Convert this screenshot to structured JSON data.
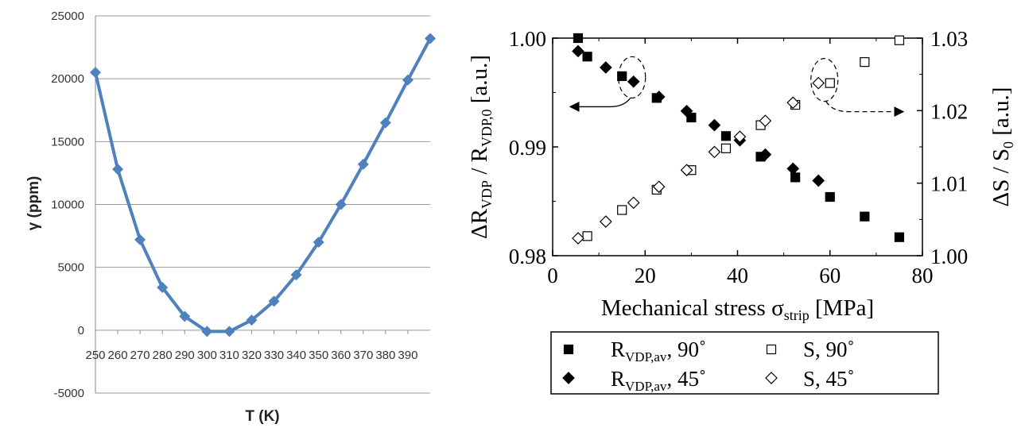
{
  "chart_data": [
    {
      "type": "line",
      "xlabel": "T (K)",
      "ylabel": "γ (ppm)",
      "xlim": [
        250,
        400
      ],
      "ylim": [
        -5000,
        25000
      ],
      "x_ticks": [
        "250",
        "260",
        "270",
        "280",
        "290",
        "300",
        "310",
        "320",
        "330",
        "340",
        "350",
        "360",
        "370",
        "380",
        "390"
      ],
      "y_ticks": [
        "-5000",
        "0",
        "5000",
        "10000",
        "15000",
        "20000",
        "25000"
      ],
      "grid": "horizontal",
      "color": "#4F81BD",
      "series": [
        {
          "x": [
            250,
            260,
            270,
            280,
            290,
            300,
            310,
            320,
            330,
            340,
            350,
            360,
            370,
            380,
            390,
            400
          ],
          "values": [
            20500,
            12800,
            7200,
            3400,
            1100,
            -100,
            -100,
            800,
            2300,
            4400,
            7000,
            10000,
            13200,
            16500,
            19900,
            23200
          ]
        }
      ]
    },
    {
      "type": "scatter",
      "xlabel": "Mechanical stress σ",
      "xlabel_sub": "strip",
      "xlabel_unit": "[MPa]",
      "ylabel": "ΔR",
      "ylabel_sub1": "VDP",
      "ylabel_mid": " / R",
      "ylabel_sub2": "VDP,0",
      "ylabel_unit": "[a.u.]",
      "y2label": "ΔS / S",
      "y2label_sub": "0",
      "y2label_unit": "[a.u.]",
      "xlim": [
        0,
        80
      ],
      "ylim": [
        0.98,
        1.0
      ],
      "y2lim": [
        1.0,
        1.03
      ],
      "x_ticks": [
        "0",
        "20",
        "40",
        "60",
        "80"
      ],
      "y_ticks": [
        "0.98",
        "0.99",
        "1.00"
      ],
      "y2_ticks": [
        "1.00",
        "1.01",
        "1.02",
        "1.03"
      ],
      "legend_position": "bottom",
      "series": [
        {
          "name_main": "R",
          "name_sub": "VDP,av",
          "name_tail": ", 90˚",
          "marker": "square",
          "filled": true,
          "axis": "left",
          "x": [
            5.5,
            7.5,
            15,
            22.5,
            30,
            37.5,
            45,
            52.5,
            60,
            67.5,
            75
          ],
          "y": [
            1.0,
            0.9983,
            0.9965,
            0.9945,
            0.9927,
            0.991,
            0.9891,
            0.9872,
            0.9854,
            0.9836,
            0.9817
          ]
        },
        {
          "name_main": "R",
          "name_sub": "VDP,av",
          "name_tail": ", 45˚",
          "marker": "diamond",
          "filled": true,
          "axis": "left",
          "x": [
            5.5,
            11.5,
            17.5,
            23,
            29,
            35,
            40.5,
            46,
            52,
            57.5
          ],
          "y": [
            0.9988,
            0.9973,
            0.996,
            0.9946,
            0.9933,
            0.992,
            0.9906,
            0.9893,
            0.988,
            0.9869
          ]
        },
        {
          "name_main": "S",
          "name_sub": "",
          "name_tail": ", 90˚",
          "marker": "square",
          "filled": false,
          "axis": "right",
          "x": [
            7.5,
            15,
            22.5,
            30,
            37.5,
            45,
            52.5,
            60,
            67.5,
            75
          ],
          "y": [
            1.0027,
            1.0063,
            1.0091,
            1.0118,
            1.0148,
            1.018,
            1.0208,
            1.0238,
            1.0267,
            1.0297
          ]
        },
        {
          "name_main": "S",
          "name_sub": "",
          "name_tail": ", 45˚",
          "marker": "diamond",
          "filled": false,
          "axis": "right",
          "x": [
            5.5,
            11.5,
            17.5,
            23,
            29,
            35,
            40.5,
            46,
            52,
            57.5
          ],
          "y": [
            1.0024,
            1.0047,
            1.0073,
            1.0095,
            1.0118,
            1.0143,
            1.0164,
            1.0186,
            1.0211,
            1.0238
          ]
        }
      ],
      "annotations": [
        {
          "kind": "ellipse-arrow",
          "target": "R 45 point near x=17.5",
          "direction": "left"
        },
        {
          "kind": "ellipse-arrow",
          "target": "S 90 point near x=60",
          "direction": "right"
        }
      ]
    }
  ]
}
